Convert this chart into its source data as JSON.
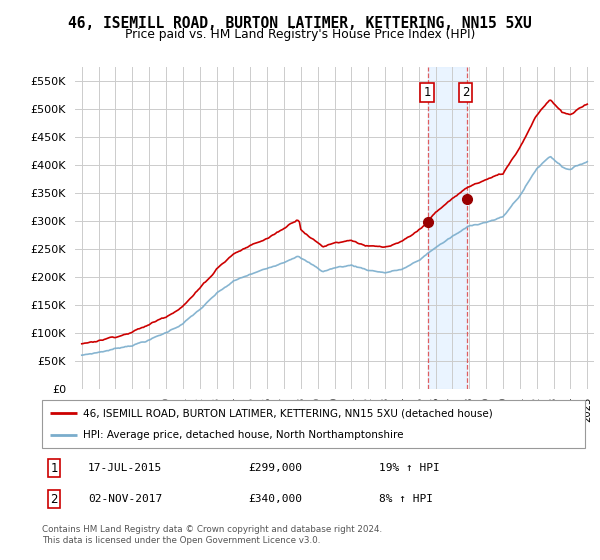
{
  "title": "46, ISEMILL ROAD, BURTON LATIMER, KETTERING, NN15 5XU",
  "subtitle": "Price paid vs. HM Land Registry's House Price Index (HPI)",
  "legend_line1": "46, ISEMILL ROAD, BURTON LATIMER, KETTERING, NN15 5XU (detached house)",
  "legend_line2": "HPI: Average price, detached house, North Northamptonshire",
  "footer": "Contains HM Land Registry data © Crown copyright and database right 2024.\nThis data is licensed under the Open Government Licence v3.0.",
  "transaction1_date": "17-JUL-2015",
  "transaction1_price": "£299,000",
  "transaction1_hpi": "19% ↑ HPI",
  "transaction2_date": "02-NOV-2017",
  "transaction2_price": "£340,000",
  "transaction2_hpi": "8% ↑ HPI",
  "red_color": "#cc0000",
  "blue_color": "#7aadcc",
  "shade_color": "#ddeeff",
  "vline_color": "#dd4444",
  "ylim_min": 0,
  "ylim_max": 575000,
  "yticks": [
    0,
    50000,
    100000,
    150000,
    200000,
    250000,
    300000,
    350000,
    400000,
    450000,
    500000,
    550000
  ],
  "t1_year": 2015.54,
  "t1_price": 299000,
  "t2_year": 2017.84,
  "t2_price": 340000
}
